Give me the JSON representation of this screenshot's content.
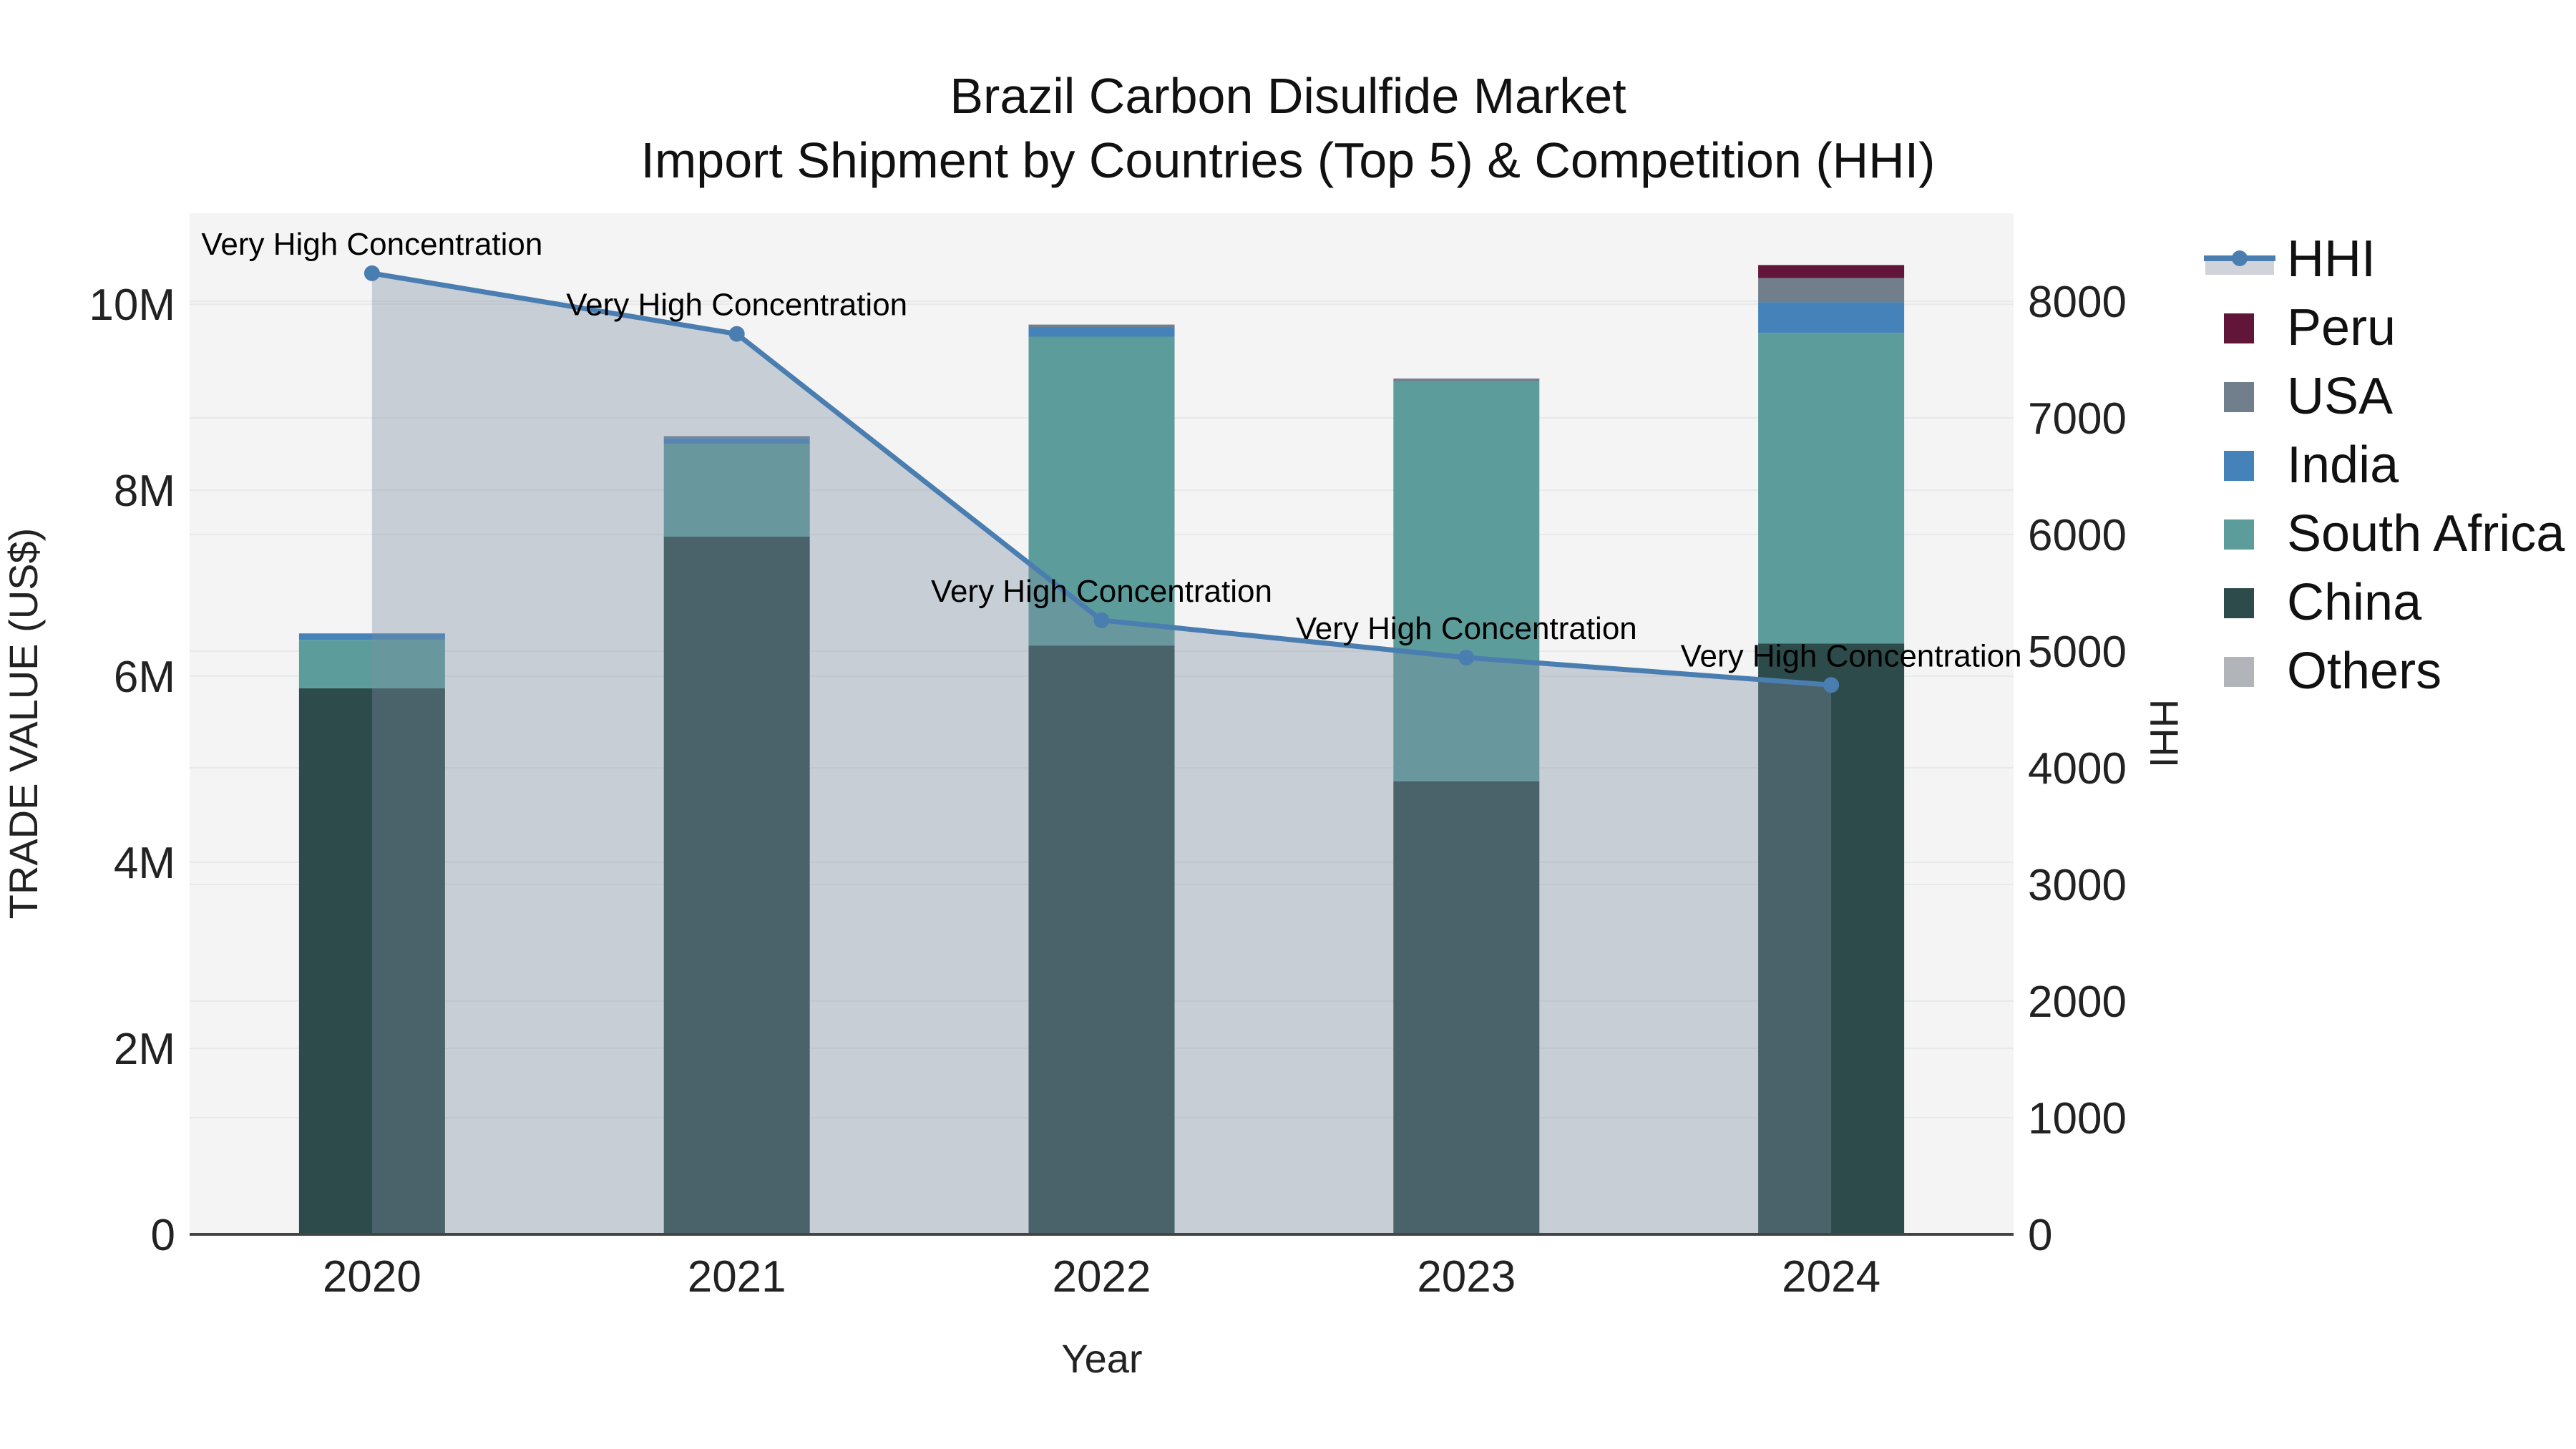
{
  "title": {
    "line1": "Brazil Carbon Disulfide Market",
    "line2": "Import Shipment by Countries (Top 5) & Competition (HHI)"
  },
  "axes": {
    "x": {
      "title": "Year",
      "ticks": [
        "2020",
        "2021",
        "2022",
        "2023",
        "2024"
      ]
    },
    "y_left": {
      "title": "TRADE VALUE (US$)",
      "tick_values_musd": [
        0,
        2,
        4,
        6,
        8,
        10
      ],
      "tick_labels": [
        "0",
        "2M",
        "4M",
        "6M",
        "8M",
        "10M"
      ]
    },
    "y_right": {
      "title": "HHI",
      "tick_values": [
        0,
        1000,
        2000,
        3000,
        4000,
        5000,
        6000,
        7000,
        8000
      ],
      "tick_labels": [
        "0",
        "1000",
        "2000",
        "3000",
        "4000",
        "5000",
        "6000",
        "7000",
        "8000"
      ]
    }
  },
  "legend": {
    "items": [
      {
        "label": "HHI",
        "kind": "line",
        "color": "#4a7eb1",
        "band_color": "#d0d3da"
      },
      {
        "label": "Peru",
        "kind": "bar",
        "color": "#611538"
      },
      {
        "label": "USA",
        "kind": "bar",
        "color": "#717e8c"
      },
      {
        "label": "India",
        "kind": "bar",
        "color": "#4582b9"
      },
      {
        "label": "South Africa",
        "kind": "bar",
        "color": "#5c9d9b"
      },
      {
        "label": "China",
        "kind": "bar",
        "color": "#2d4b4b"
      },
      {
        "label": "Others",
        "kind": "bar",
        "color": "#b1b4b8"
      }
    ]
  },
  "colors": {
    "plot_background": "#f4f4f5",
    "gridline": "#e7e9ea",
    "axis_line": "#444444",
    "hhi_line": "#4a7eb1",
    "hhi_area_fill": "rgba(125,140,160,0.37)"
  },
  "chart_data": {
    "type": "combo-stacked-bar-and-line",
    "categories": [
      "2020",
      "2021",
      "2022",
      "2023",
      "2024"
    ],
    "bar_unit": "million US$ (left axis TRADE VALUE (US$))",
    "series": [
      {
        "name": "China",
        "kind": "bar",
        "axis": "left",
        "color": "#2d4b4b",
        "values": [
          5.87,
          7.5,
          6.33,
          4.87,
          6.35
        ]
      },
      {
        "name": "South Africa",
        "kind": "bar",
        "axis": "left",
        "color": "#5c9d9b",
        "values": [
          0.52,
          1.0,
          3.32,
          4.3,
          3.34
        ]
      },
      {
        "name": "India",
        "kind": "bar",
        "axis": "left",
        "color": "#4582b9",
        "values": [
          0.07,
          0.06,
          0.1,
          0.0,
          0.33
        ]
      },
      {
        "name": "USA",
        "kind": "bar",
        "axis": "left",
        "color": "#717e8c",
        "values": [
          0.0,
          0.02,
          0.03,
          0.03,
          0.26
        ]
      },
      {
        "name": "Peru",
        "kind": "bar",
        "axis": "left",
        "color": "#611538",
        "values": [
          0.0,
          0.0,
          0.0,
          0.0,
          0.14
        ]
      },
      {
        "name": "Others",
        "kind": "bar",
        "axis": "left",
        "color": "#b1b4b8",
        "values": [
          0.0,
          0.0,
          0.0,
          0.0,
          0.0
        ]
      },
      {
        "name": "HHI",
        "kind": "line",
        "axis": "right",
        "color": "#4a7eb1",
        "area_fill": "rgba(125,140,160,0.37)",
        "values": [
          8240,
          7720,
          5265,
          4945,
          4710
        ]
      }
    ],
    "bar_totals_musd": [
      6.46,
      8.58,
      9.78,
      9.2,
      10.42
    ],
    "annotations": [
      "Very High Concentration",
      "Very High Concentration",
      "Very High Concentration",
      "Very High Concentration",
      "Very High Concentration"
    ],
    "xlabel": "Year",
    "ylabel_left": "TRADE VALUE (US$)",
    "ylabel_right": "HHI",
    "ylim_left_musd": [
      0,
      10.98
    ],
    "ylim_right": [
      0,
      8755
    ],
    "grid": true,
    "legend_position": "right"
  }
}
